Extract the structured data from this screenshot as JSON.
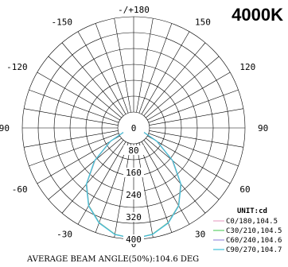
{
  "badge": "4000K",
  "chart_data": {
    "type": "polar",
    "title": "",
    "unit": "UNIT:cd",
    "angle_labels": [
      "-/+180",
      "150",
      "120",
      "90",
      "60",
      "30",
      "0",
      "-30",
      "-60",
      "-90",
      "-120",
      "-150"
    ],
    "angle_label_angles": [
      180,
      150,
      120,
      90,
      60,
      30,
      0,
      -30,
      -60,
      -90,
      -120,
      -150
    ],
    "radial_ticks": [
      "0",
      "80",
      "160",
      "240",
      "320",
      "400"
    ],
    "radial_tick_values": [
      0,
      80,
      160,
      240,
      320,
      400
    ],
    "rmax": 400,
    "grid": true,
    "legend_position": "bottom-right",
    "series": [
      {
        "name": "C0/180,104.5",
        "color": "#e8a6c8",
        "angles": [
          0,
          10,
          20,
          30,
          40,
          50,
          60,
          70,
          80,
          90
        ],
        "values": [
          398,
          388,
          362,
          322,
          262,
          180,
          95,
          30,
          8,
          0
        ]
      },
      {
        "name": "C30/210,104.5",
        "color": "#5fd06b",
        "angles": [
          0,
          10,
          20,
          30,
          40,
          50,
          60,
          70,
          80,
          90
        ],
        "values": [
          398,
          388,
          362,
          322,
          263,
          182,
          96,
          31,
          8,
          0
        ]
      },
      {
        "name": "C60/240,104.6",
        "color": "#9b8fe0",
        "angles": [
          0,
          10,
          20,
          30,
          40,
          50,
          60,
          70,
          80,
          90
        ],
        "values": [
          398,
          389,
          363,
          323,
          264,
          183,
          97,
          31,
          8,
          0
        ]
      },
      {
        "name": "C90/270,104.7",
        "color": "#3fc1d8",
        "angles": [
          0,
          10,
          20,
          30,
          40,
          50,
          60,
          70,
          80,
          90
        ],
        "values": [
          398,
          389,
          364,
          324,
          265,
          184,
          98,
          32,
          9,
          0
        ]
      }
    ],
    "footer": "AVERAGE BEAM ANGLE(50%):104.6 DEG"
  }
}
